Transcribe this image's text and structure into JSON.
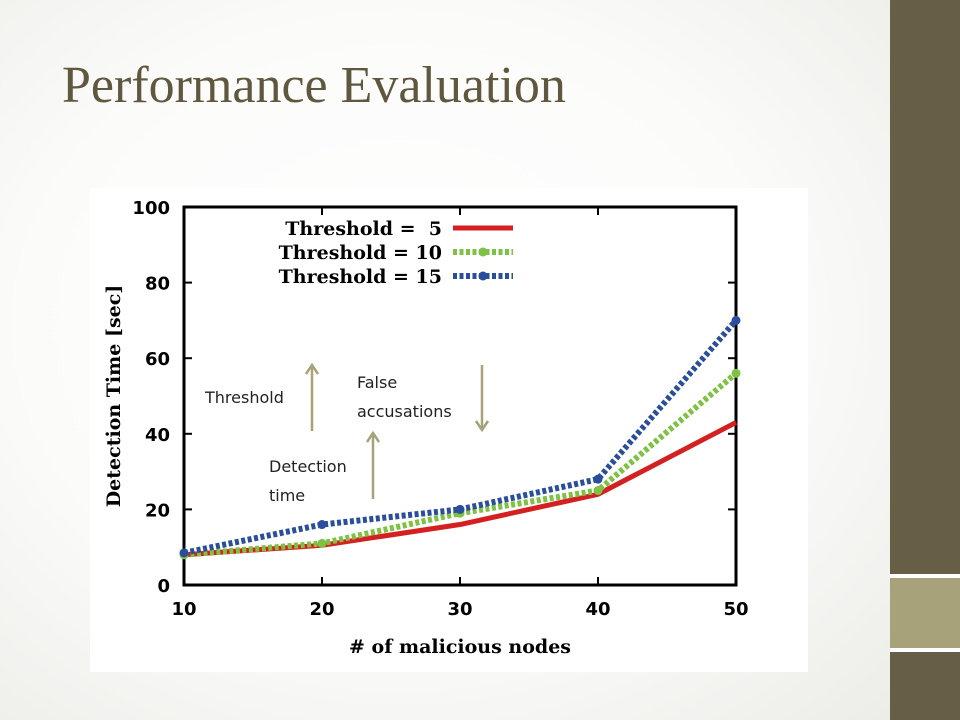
{
  "slide": {
    "title": "Performance Evaluation"
  },
  "annotations": {
    "threshold": "Threshold",
    "false_accusations_line1": "False",
    "false_accusations_line2": "accusations",
    "detection_time_line1": "Detection",
    "detection_time_line2": "time"
  },
  "colors": {
    "sidebar": "#675f45",
    "sidebar_accent": "#a7a27a",
    "title": "#5f583f",
    "arrow": "#a7a27a"
  },
  "chart_data": {
    "type": "line",
    "title": "",
    "xlabel": "# of malicious nodes",
    "ylabel": "Detection Time [sec]",
    "x": [
      10,
      20,
      30,
      40,
      50
    ],
    "xticks": [
      "10",
      "20",
      "30",
      "40",
      "50"
    ],
    "yticks": [
      "0",
      "20",
      "40",
      "60",
      "80",
      "100"
    ],
    "xlim": [
      10,
      50
    ],
    "ylim": [
      0,
      100
    ],
    "grid": false,
    "legend_position": "top-left",
    "series": [
      {
        "name": "Threshold =  5",
        "values": [
          8,
          10.5,
          16,
          24,
          43
        ],
        "color": "#d42020",
        "style": "solid",
        "markers": false
      },
      {
        "name": "Threshold = 10",
        "values": [
          8,
          11,
          19,
          25,
          56
        ],
        "color": "#7dc242",
        "style": "dotted",
        "markers": true
      },
      {
        "name": "Threshold = 15",
        "values": [
          8.5,
          16,
          20,
          28,
          70
        ],
        "color": "#2a4e9c",
        "style": "dotted",
        "markers": true
      }
    ]
  }
}
